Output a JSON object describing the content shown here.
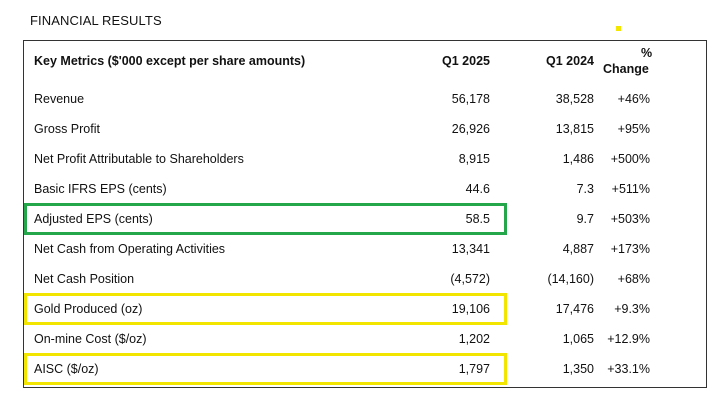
{
  "title": "FINANCIAL RESULTS",
  "header": {
    "metric": "Key Metrics ($'000 except per share amounts)",
    "q1_2025": "Q1 2025",
    "q1_2024": "Q1 2024",
    "pct_line1": "%",
    "pct_line2": "Change"
  },
  "rows": [
    {
      "label": "Revenue",
      "q1_2025": "56,178",
      "q1_2024": "38,528",
      "change": "+46%"
    },
    {
      "label": "Gross Profit",
      "q1_2025": "26,926",
      "q1_2024": "13,815",
      "change": "+95%"
    },
    {
      "label": "Net Profit Attributable to Shareholders",
      "q1_2025": "8,915",
      "q1_2024": "1,486",
      "change": "+500%"
    },
    {
      "label": "Basic IFRS EPS (cents)",
      "q1_2025": "44.6",
      "q1_2024": "7.3",
      "change": "+511%"
    },
    {
      "label": "Adjusted EPS (cents)",
      "q1_2025": "58.5",
      "q1_2024": "9.7",
      "change": "+503%"
    },
    {
      "label": "Net Cash from Operating Activities",
      "q1_2025": "13,341",
      "q1_2024": "4,887",
      "change": "+173%"
    },
    {
      "label": "Net Cash Position",
      "q1_2025": "(4,572)",
      "q1_2024": "(14,160)",
      "change": "+68%"
    },
    {
      "label": "Gold Produced (oz)",
      "q1_2025": "19,106",
      "q1_2024": "17,476",
      "change": "+9.3%"
    },
    {
      "label": "On-mine Cost ($/oz)",
      "q1_2025": "1,202",
      "q1_2024": "1,065",
      "change": "+12.9%"
    },
    {
      "label": "AISC ($/oz)",
      "q1_2025": "1,797",
      "q1_2024": "1,350",
      "change": "+33.1%"
    }
  ],
  "highlights": {
    "green_rows": [
      4
    ],
    "yellow_rows": [
      7,
      9
    ],
    "green_color": "#24a64a",
    "yellow_color": "#f2e600"
  }
}
